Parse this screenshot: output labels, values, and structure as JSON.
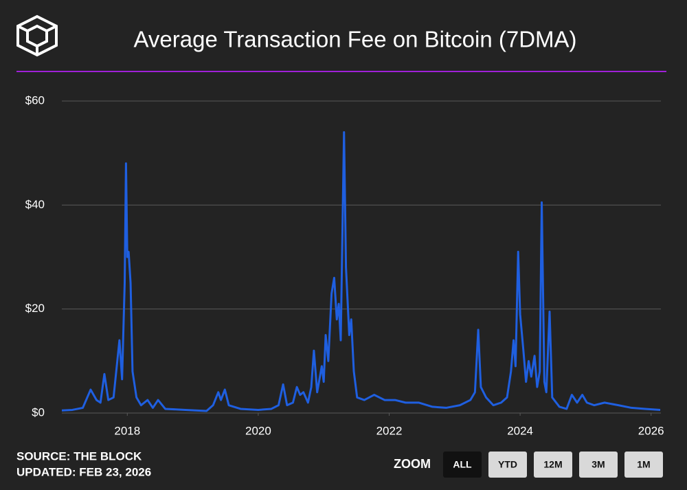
{
  "chart_data": {
    "type": "line",
    "title": "Average Transaction Fee on Bitcoin (7DMA)",
    "source": "SOURCE: THE BLOCK",
    "updated": "UPDATED: FEB 23, 2026",
    "zoom": {
      "label": "ZOOM",
      "buttons": [
        "ALL",
        "YTD",
        "12M",
        "3M",
        "1M"
      ],
      "active": "ALL"
    },
    "xlim": [
      2017.0,
      2026.15
    ],
    "xticks": [
      2018,
      2020,
      2022,
      2024,
      2026
    ],
    "ylim": [
      0,
      60
    ],
    "yticks": [
      {
        "value": 0,
        "label": "$0"
      },
      {
        "value": 20,
        "label": "$20"
      },
      {
        "value": 40,
        "label": "$40"
      },
      {
        "value": 60,
        "label": "$60"
      }
    ],
    "grid": true,
    "x": [
      2017.0,
      2017.16,
      2017.32,
      2017.44,
      2017.53,
      2017.59,
      2017.65,
      2017.71,
      2017.79,
      2017.88,
      2017.92,
      2017.96,
      2017.98,
      2018.0,
      2018.02,
      2018.05,
      2018.08,
      2018.14,
      2018.21,
      2018.31,
      2018.39,
      2018.47,
      2018.58,
      2018.89,
      2019.21,
      2019.31,
      2019.39,
      2019.43,
      2019.49,
      2019.55,
      2019.73,
      2020.0,
      2020.2,
      2020.31,
      2020.38,
      2020.44,
      2020.53,
      2020.59,
      2020.64,
      2020.69,
      2020.76,
      2020.81,
      2020.85,
      2020.9,
      2020.97,
      2021.0,
      2021.03,
      2021.07,
      2021.12,
      2021.16,
      2021.2,
      2021.23,
      2021.26,
      2021.31,
      2021.34,
      2021.39,
      2021.42,
      2021.46,
      2021.51,
      2021.62,
      2021.77,
      2021.93,
      2022.09,
      2022.25,
      2022.45,
      2022.66,
      2022.87,
      2023.08,
      2023.24,
      2023.31,
      2023.36,
      2023.4,
      2023.48,
      2023.59,
      2023.71,
      2023.8,
      2023.86,
      2023.9,
      2023.93,
      2023.97,
      2024.0,
      2024.05,
      2024.09,
      2024.13,
      2024.17,
      2024.22,
      2024.26,
      2024.3,
      2024.33,
      2024.37,
      2024.4,
      2024.45,
      2024.49,
      2024.6,
      2024.71,
      2024.79,
      2024.87,
      2024.95,
      2025.02,
      2025.13,
      2025.29,
      2025.5,
      2025.7,
      2025.91,
      2026.14
    ],
    "series": [
      {
        "color": "#1f5fe0",
        "values": [
          0.5,
          0.6,
          1,
          4.5,
          2.5,
          2,
          7.5,
          2.5,
          3,
          14,
          6.5,
          25,
          48,
          30,
          31,
          25,
          8,
          3,
          1.5,
          2.5,
          1,
          2.5,
          0.8,
          0.6,
          0.4,
          1.5,
          4,
          2.5,
          4.5,
          1.5,
          0.8,
          0.6,
          0.8,
          1.5,
          5.5,
          1.5,
          2,
          5,
          3.5,
          4,
          2,
          5,
          12,
          4,
          9,
          6,
          15,
          10,
          23,
          26,
          18,
          21,
          14,
          54,
          28,
          15,
          18,
          8,
          3,
          2.5,
          3.5,
          2.5,
          2.5,
          2,
          2,
          1.2,
          1,
          1.5,
          2.5,
          4,
          16,
          5,
          3,
          1.5,
          2,
          3,
          8,
          14,
          9,
          31,
          19,
          12,
          6,
          10,
          7,
          11,
          5,
          8,
          40.5,
          6,
          4,
          19.5,
          3,
          1.2,
          0.8,
          3.5,
          2,
          3.5,
          2,
          1.5,
          2,
          1.5,
          1,
          0.8,
          0.6
        ]
      }
    ]
  }
}
